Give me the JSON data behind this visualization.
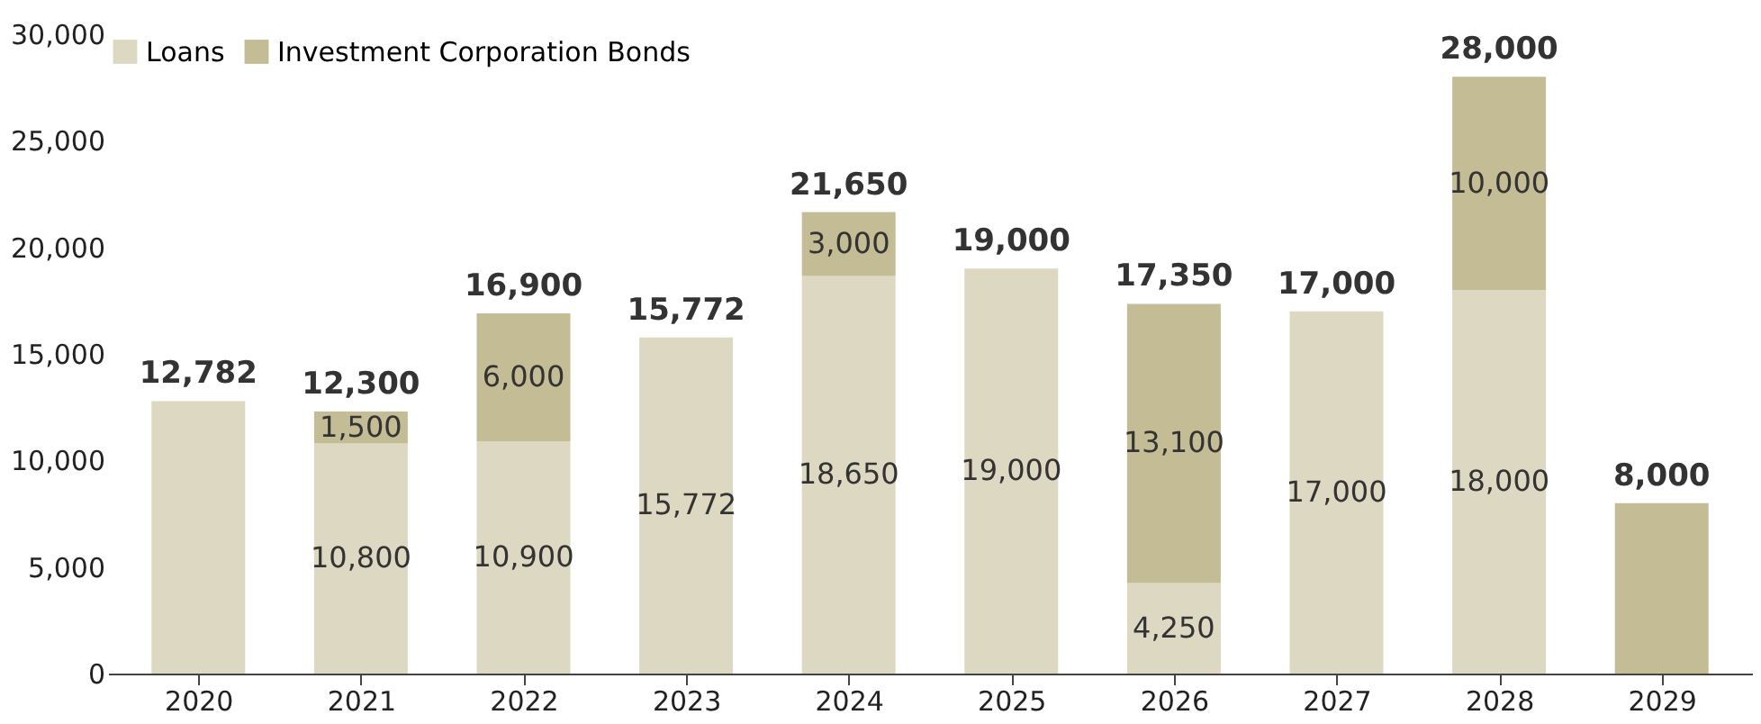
{
  "chart_data": {
    "type": "bar",
    "stacked": true,
    "categories": [
      "2020",
      "2021",
      "2022",
      "2023",
      "2024",
      "2025",
      "2026",
      "2027",
      "2028",
      "2029"
    ],
    "series": [
      {
        "name": "Loans",
        "color": "#ddd8c2",
        "values": [
          12782,
          10800,
          10900,
          15772,
          18650,
          19000,
          4250,
          17000,
          18000,
          null
        ],
        "value_labels": [
          null,
          "10,800",
          "10,900",
          "15,772",
          "18,650",
          "19,000",
          "4,250",
          "17,000",
          "18,000",
          null
        ]
      },
      {
        "name": "Investment Corporation Bonds",
        "color": "#c4bc95",
        "values": [
          null,
          1500,
          6000,
          null,
          3000,
          null,
          13100,
          null,
          10000,
          8000
        ],
        "value_labels": [
          null,
          "1,500",
          "6,000",
          null,
          "3,000",
          null,
          "13,100",
          null,
          "10,000",
          null
        ]
      }
    ],
    "totals": [
      "12,782",
      "12,300",
      "16,900",
      "15,772",
      "21,650",
      "19,000",
      "17,350",
      "17,000",
      "28,000",
      "8,000"
    ],
    "ylim": [
      0,
      30000
    ],
    "yticks": [
      0,
      {
        "value": 5000,
        "label": "5,000"
      },
      {
        "value": 10000,
        "label": "10,000"
      },
      {
        "value": 15000,
        "label": "15,000"
      },
      {
        "value": 20000,
        "label": "20,000"
      },
      {
        "value": 25000,
        "label": "25,000"
      },
      {
        "value": 30000,
        "label": "30,000"
      }
    ],
    "grid": false,
    "legend": "top left"
  }
}
